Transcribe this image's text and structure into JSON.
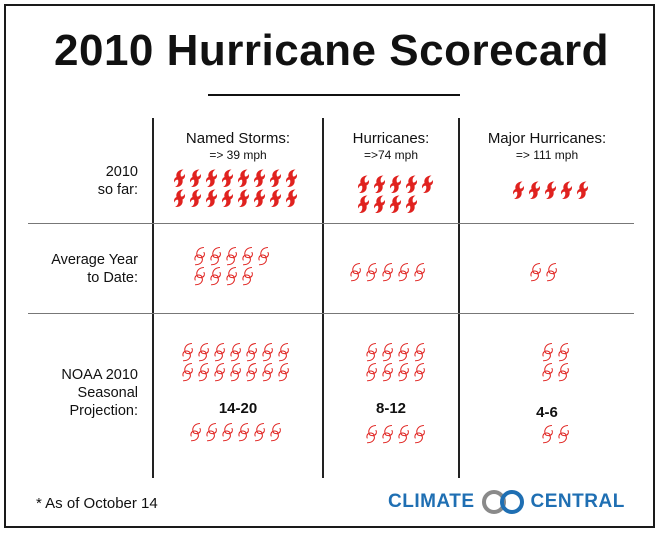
{
  "title": "2010 Hurricane Scorecard",
  "columns": [
    {
      "label": "Named Storms:",
      "threshold": "=> 39 mph"
    },
    {
      "label": "Hurricanes:",
      "threshold": "=>74 mph"
    },
    {
      "label": "Major Hurricanes:",
      "threshold": "=> 111 mph"
    }
  ],
  "rows": [
    {
      "label": [
        "2010",
        "so far:"
      ]
    },
    {
      "label": [
        "Average Year",
        "to Date:"
      ]
    },
    {
      "label": [
        "NOAA 2010",
        "Seasonal",
        "Projection:"
      ]
    }
  ],
  "counts": {
    "so_far": [
      16,
      9,
      5
    ],
    "average": [
      9,
      5,
      2
    ],
    "projection_low": [
      14,
      8,
      4
    ],
    "projection_extra": [
      6,
      4,
      2
    ]
  },
  "ranges": [
    "14-20",
    "8-12",
    "4-6"
  ],
  "footnote": "* As of October 14",
  "logo": {
    "left": "CLIMATE",
    "right": "CENTRAL"
  },
  "colors": {
    "filled": "#e0221f",
    "outline": "#e0221f",
    "logo": "#1f6fb3",
    "logo_gray": "#8a8a8a"
  },
  "icon": "hurricane-icon"
}
